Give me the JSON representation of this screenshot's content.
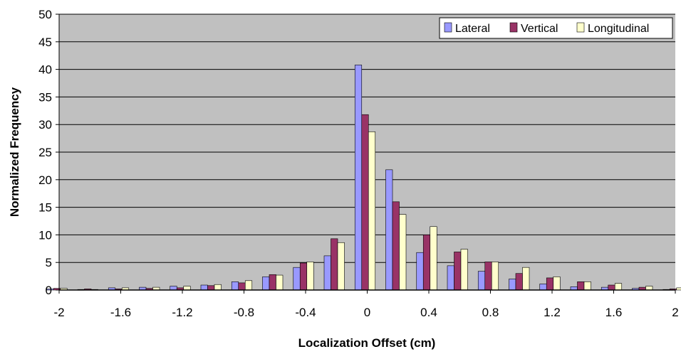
{
  "chart_data": {
    "type": "bar",
    "title": "",
    "xlabel": "Localization Offset (cm)",
    "ylabel": "Normalized Frequency",
    "ylim": [
      0,
      50
    ],
    "yticks": [
      0,
      5,
      10,
      15,
      20,
      25,
      30,
      35,
      40,
      45,
      50
    ],
    "xlim": [
      -2,
      2
    ],
    "xticks": [
      "-2",
      "-1.6",
      "-1.2",
      "-0.8",
      "-0.4",
      "0",
      "0.4",
      "0.8",
      "1.2",
      "1.6",
      "2"
    ],
    "x": [
      -2,
      -1.8,
      -1.6,
      -1.4,
      -1.2,
      -1.0,
      -0.8,
      -0.6,
      -0.4,
      -0.2,
      0,
      0.2,
      0.4,
      0.6,
      0.8,
      1.0,
      1.2,
      1.4,
      1.6,
      1.8,
      2.0
    ],
    "series": [
      {
        "name": "Lateral",
        "color": "#9999ff",
        "values": [
          0.2,
          0.1,
          0.4,
          0.5,
          0.7,
          0.9,
          1.5,
          2.4,
          4.1,
          6.2,
          40.8,
          21.8,
          6.8,
          4.4,
          3.4,
          2.0,
          1.1,
          0.6,
          0.5,
          0.3,
          0.1
        ]
      },
      {
        "name": "Vertical",
        "color": "#993366",
        "values": [
          0.3,
          0.2,
          0.2,
          0.3,
          0.4,
          0.8,
          1.3,
          2.8,
          4.9,
          9.3,
          31.8,
          16.0,
          10.0,
          6.9,
          5.1,
          3.0,
          2.2,
          1.5,
          0.9,
          0.5,
          0.2
        ]
      },
      {
        "name": "Longitudinal",
        "color": "#ffffcc",
        "values": [
          0.3,
          0.1,
          0.4,
          0.5,
          0.7,
          1.0,
          1.7,
          2.7,
          5.1,
          8.6,
          28.7,
          13.7,
          11.5,
          7.4,
          5.1,
          4.1,
          2.4,
          1.5,
          1.2,
          0.7,
          0.4
        ]
      }
    ],
    "grid": true,
    "legend_position": "top-right",
    "plot_background": "#c0c0c0"
  }
}
